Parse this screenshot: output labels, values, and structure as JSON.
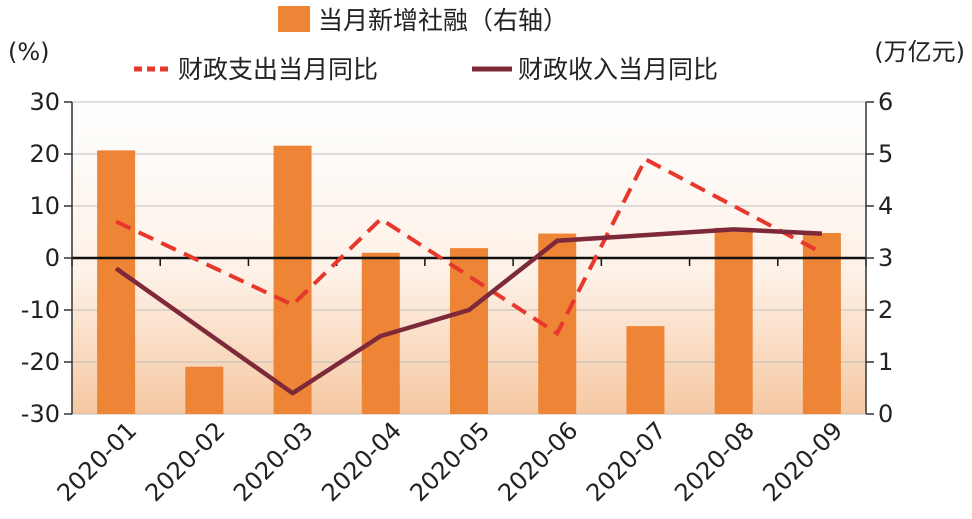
{
  "chart_data": {
    "type": "bar",
    "categories": [
      "2020-01",
      "2020-02",
      "2020-03",
      "2020-04",
      "2020-05",
      "2020-06",
      "2020-07",
      "2020-08",
      "2020-09"
    ],
    "left_axis": {
      "unit_label": "(%)",
      "ylim": [
        -30,
        30
      ],
      "ticks": [
        "30",
        "20",
        "10",
        "0",
        "-10",
        "-20",
        "-30"
      ]
    },
    "right_axis": {
      "unit_label": "(万亿元)",
      "ylim": [
        0,
        6
      ],
      "ticks": [
        "6",
        "5",
        "4",
        "3",
        "2",
        "1",
        "0"
      ]
    },
    "series": [
      {
        "name": "当月新增社融（右轴）",
        "type": "bar",
        "axis": "right",
        "color": "#ED8436",
        "values": [
          5.07,
          0.91,
          5.16,
          3.1,
          3.19,
          3.47,
          1.69,
          3.58,
          3.48
        ]
      },
      {
        "name": "财政支出当月同比",
        "type": "line",
        "style": "dashed",
        "axis": "left",
        "color": "#E8382E",
        "values": [
          7.0,
          null,
          -9.0,
          7.5,
          null,
          -14.5,
          19.0,
          null,
          1.0
        ]
      },
      {
        "name": "财政收入当月同比",
        "type": "line",
        "style": "solid",
        "axis": "left",
        "color": "#7E2939",
        "values": [
          -2.0,
          null,
          -26.0,
          -15.0,
          -10.0,
          3.3,
          null,
          5.5,
          4.7
        ]
      }
    ],
    "grid": true,
    "legend_position": "top"
  }
}
